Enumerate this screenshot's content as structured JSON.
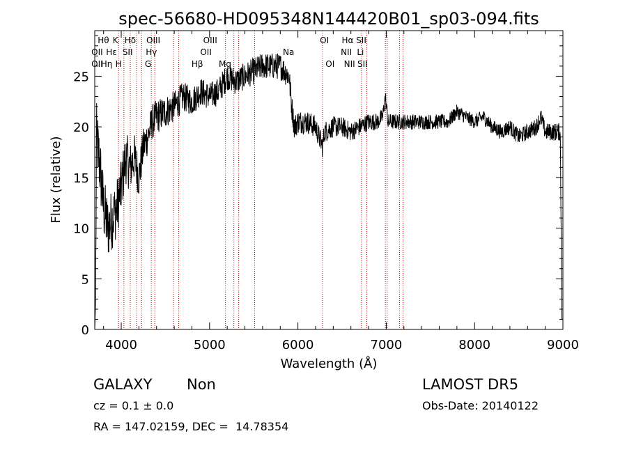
{
  "chart_data": {
    "type": "line",
    "title": "spec-56680-HD095348N144420B01_sp03-094.fits",
    "xlabel": "Wavelength (Å)",
    "ylabel": "Flux (relative)",
    "xlim": [
      3700,
      9000
    ],
    "ylim": [
      0,
      29.5
    ],
    "x_ticks": [
      4000,
      5000,
      6000,
      7000,
      8000,
      9000
    ],
    "y_ticks": [
      0,
      5,
      10,
      15,
      20,
      25
    ],
    "grid": false,
    "line_color": "#000000",
    "marker_color": "#c00000",
    "spectrum": {
      "anchors": [
        [
          3700,
          0
        ],
        [
          3710,
          3
        ],
        [
          3720,
          19
        ],
        [
          3760,
          16
        ],
        [
          3800,
          12
        ],
        [
          3850,
          10
        ],
        [
          3900,
          11
        ],
        [
          3950,
          12
        ],
        [
          4000,
          14
        ],
        [
          4050,
          17
        ],
        [
          4100,
          16
        ],
        [
          4150,
          17
        ],
        [
          4200,
          15
        ],
        [
          4250,
          18
        ],
        [
          4300,
          19
        ],
        [
          4350,
          20.5
        ],
        [
          4400,
          21
        ],
        [
          4500,
          21.5
        ],
        [
          4600,
          22
        ],
        [
          4700,
          23
        ],
        [
          4800,
          22.5
        ],
        [
          4900,
          23.5
        ],
        [
          5000,
          23
        ],
        [
          5100,
          23.5
        ],
        [
          5200,
          25
        ],
        [
          5300,
          24.5
        ],
        [
          5400,
          25
        ],
        [
          5500,
          25.5
        ],
        [
          5600,
          26
        ],
        [
          5700,
          26
        ],
        [
          5800,
          26
        ],
        [
          5900,
          25
        ],
        [
          5930,
          22
        ],
        [
          5960,
          20
        ],
        [
          6000,
          20.5
        ],
        [
          6100,
          20.5
        ],
        [
          6200,
          20
        ],
        [
          6280,
          18
        ],
        [
          6300,
          19.5
        ],
        [
          6400,
          20
        ],
        [
          6500,
          20
        ],
        [
          6600,
          19.5
        ],
        [
          6700,
          20
        ],
        [
          6800,
          20.5
        ],
        [
          6900,
          20.5
        ],
        [
          6960,
          21
        ],
        [
          6990,
          23
        ],
        [
          7020,
          20.5
        ],
        [
          7100,
          20.5
        ],
        [
          7200,
          20.5
        ],
        [
          7300,
          20.5
        ],
        [
          7500,
          20.5
        ],
        [
          7700,
          20.5
        ],
        [
          7800,
          21.5
        ],
        [
          7900,
          21
        ],
        [
          8000,
          20.5
        ],
        [
          8100,
          21
        ],
        [
          8200,
          20
        ],
        [
          8300,
          19.5
        ],
        [
          8400,
          20
        ],
        [
          8500,
          19
        ],
        [
          8600,
          19.5
        ],
        [
          8700,
          20
        ],
        [
          8750,
          21
        ],
        [
          8800,
          19.5
        ],
        [
          8900,
          19.5
        ],
        [
          8970,
          19.5
        ],
        [
          8990,
          0
        ]
      ],
      "noise": [
        [
          3700,
          3.5
        ],
        [
          4000,
          2.8
        ],
        [
          4300,
          1.8
        ],
        [
          4800,
          1.4
        ],
        [
          5900,
          1.3
        ],
        [
          6000,
          1.2
        ],
        [
          7000,
          0.8
        ],
        [
          8000,
          0.7
        ],
        [
          9000,
          0.9
        ]
      ]
    },
    "line_markers": [
      {
        "label": "OII",
        "x": 3727,
        "row": 1
      },
      {
        "label": "OII",
        "x": 3727,
        "row": 2
      },
      {
        "label": "Hθ",
        "x": 3798,
        "row": 0
      },
      {
        "label": "Hη",
        "x": 3835,
        "row": 2
      },
      {
        "label": "Hε",
        "x": 3889,
        "row": 1
      },
      {
        "label": "K",
        "x": 3934,
        "row": 0
      },
      {
        "label": "H",
        "x": 3969,
        "row": 2
      },
      {
        "label": "Hδ",
        "x": 4102,
        "row": 0
      },
      {
        "label": "SII",
        "x": 4072,
        "row": 1
      },
      {
        "label": "OIII",
        "x": 4363,
        "row": 0
      },
      {
        "label": "Hγ",
        "x": 4341,
        "row": 1
      },
      {
        "label": "G",
        "x": 4304,
        "row": 2
      },
      {
        "label": "OIII",
        "x": 5007,
        "row": 0
      },
      {
        "label": "OII",
        "x": 4959,
        "row": 1
      },
      {
        "label": "Hβ",
        "x": 4861,
        "row": 2
      },
      {
        "label": "Mg",
        "x": 5175,
        "row": 2
      },
      {
        "label": "Na",
        "x": 5894,
        "row": 1
      },
      {
        "label": "OI",
        "x": 6300,
        "row": 0
      },
      {
        "label": "OI",
        "x": 6364,
        "row": 2
      },
      {
        "label": "Hα",
        "x": 6563,
        "row": 0
      },
      {
        "label": "NII",
        "x": 6548,
        "row": 1
      },
      {
        "label": "NII",
        "x": 6584,
        "row": 2
      },
      {
        "label": "SII",
        "x": 6717,
        "row": 0
      },
      {
        "label": "Li",
        "x": 6708,
        "row": 1
      },
      {
        "label": "SII",
        "x": 6731,
        "row": 2
      }
    ],
    "marker_lines": [
      3970,
      4030,
      4102,
      4173,
      4230,
      4340,
      4380,
      4590,
      4650,
      5180,
      5275,
      5330,
      5510,
      6280,
      6720,
      6780,
      6990,
      7010,
      7150,
      7190
    ]
  },
  "info": {
    "object_class": "GALAXY",
    "subclass": "Non",
    "survey": "LAMOST DR5",
    "redshift": "cz = 0.1 ± 0.0",
    "obs_date": "Obs-Date: 20140122",
    "coords": "RA = 147.02159, DEC =  14.78354"
  }
}
